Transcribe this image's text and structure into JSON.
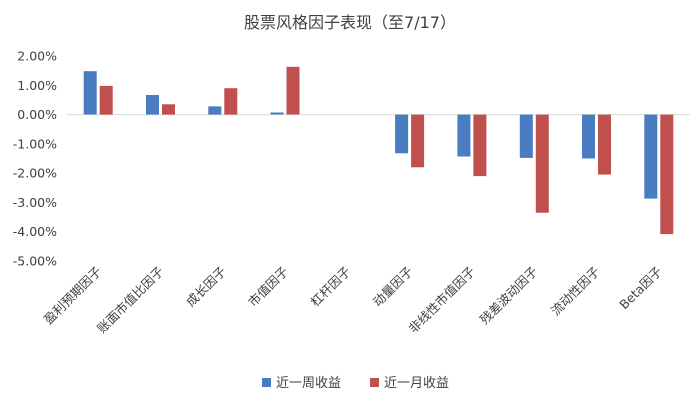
{
  "chart_data": {
    "type": "bar",
    "title": "股票风格因子表现（至7/17）",
    "xlabel": "",
    "ylabel": "",
    "ylim": [
      -5.0,
      2.0
    ],
    "ytick_step": 1.0,
    "ytick_labels": [
      "2.00%",
      "1.00%",
      "0.00%",
      "-1.00%",
      "-2.00%",
      "-3.00%",
      "-4.00%",
      "-5.00%"
    ],
    "categories": [
      "盈利预期因子",
      "账面市值比因子",
      "成长因子",
      "市值因子",
      "杠杆因子",
      "动量因子",
      "非线性市值因子",
      "残差波动因子",
      "流动性因子",
      "Beta因子"
    ],
    "series": [
      {
        "name": "近一周收益",
        "color": "#4a7cc2",
        "values": [
          1.48,
          0.67,
          0.28,
          0.07,
          0.0,
          -1.32,
          -1.43,
          -1.48,
          -1.5,
          -2.87
        ]
      },
      {
        "name": "近一月收益",
        "color": "#c0504d",
        "values": [
          0.98,
          0.35,
          0.9,
          1.63,
          0.0,
          -1.8,
          -2.1,
          -3.35,
          -2.05,
          -4.08
        ]
      }
    ],
    "grid": false,
    "legend_position": "bottom"
  }
}
